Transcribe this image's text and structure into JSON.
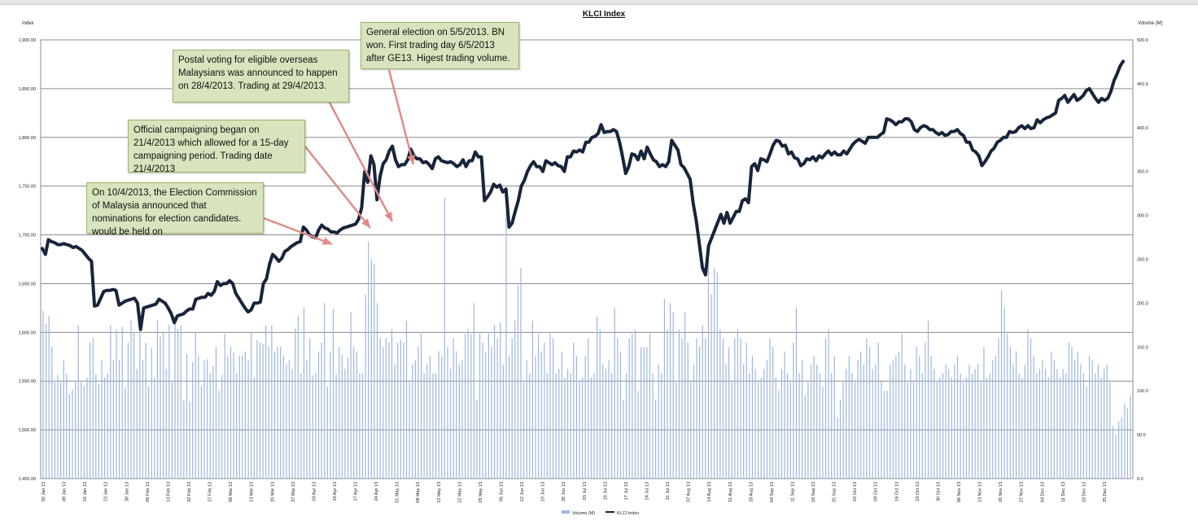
{
  "colors": {
    "line": "#17243a",
    "bars": "#9db7e0",
    "grid": "#8c8c8c",
    "annotation_fill": "#d7e4bd",
    "arrow": "#e08a8a"
  },
  "chart_data": {
    "type": "bar+line",
    "title": "KLCI Index",
    "ylabel": "Index",
    "y2label": "Volume (M)",
    "ylim": [
      1450,
      1900
    ],
    "y2lim": [
      0,
      500
    ],
    "grid": true,
    "legend_position": "bottom",
    "y_ticks": [
      "1,450.00",
      "1,500.00",
      "1,550.00",
      "1,600.00",
      "1,650.00",
      "1,700.00",
      "1,750.00",
      "1,800.00",
      "1,850.00",
      "1,900.00"
    ],
    "y2_ticks": [
      "0.0",
      "50.0",
      "100.0",
      "150.0",
      "200.0",
      "250.0",
      "300.0",
      "350.0",
      "400.0",
      "450.0",
      "500.0"
    ],
    "x_ticks": [
      "02 Jan 13",
      "09 Jan 13",
      "16 Jan 13",
      "23 Jan 13",
      "30 Jan 13",
      "06 Feb 13",
      "13 Feb 13",
      "20 Feb 13",
      "27 Feb 13",
      "06 Mar 13",
      "13 Mar 13",
      "20 Mar 13",
      "27 Mar 13",
      "03 Apr 13",
      "10 Apr 13",
      "17 Apr 13",
      "24 Apr 13",
      "01 May 13",
      "08 May 13",
      "15 May 13",
      "22 May 13",
      "29 May 13",
      "05 Jun 13",
      "12 Jun 13",
      "19 Jun 13",
      "26 Jun 13",
      "03 Jul 13",
      "10 Jul 13",
      "17 Jul 13",
      "24 Jul 13",
      "31 Jul 13",
      "07 Aug 13",
      "14 Aug 13",
      "21 Aug 13",
      "28 Aug 13",
      "04 Sep 13",
      "11 Sep 13",
      "18 Sep 13",
      "25 Sep 13",
      "02 Oct 13",
      "09 Oct 13",
      "16 Oct 13",
      "23 Oct 13",
      "30 Oct 13",
      "06 Nov 13",
      "13 Nov 13",
      "20 Nov 13",
      "27 Nov 13",
      "04 Dec 13",
      "11 Dec 13",
      "18 Dec 13",
      "25 Dec 13"
    ],
    "series": [
      {
        "name": "KLCI Index",
        "type": "line",
        "values": [
          1686,
          1680,
          1695,
          1693,
          1692,
          1690,
          1690,
          1691,
          1690,
          1689,
          1687,
          1688,
          1686,
          1684,
          1680,
          1676,
          1673,
          1627,
          1628,
          1635,
          1642,
          1643,
          1643,
          1644,
          1643,
          1628,
          1630,
          1632,
          1633,
          1634,
          1635,
          1630,
          1603,
          1625,
          1626,
          1627,
          1628,
          1629,
          1634,
          1632,
          1630,
          1625,
          1619,
          1610,
          1617,
          1618,
          1619,
          1622,
          1624,
          1624,
          1634,
          1635,
          1636,
          1636,
          1640,
          1638,
          1642,
          1652,
          1648,
          1650,
          1650,
          1653,
          1650,
          1640,
          1635,
          1630,
          1625,
          1621,
          1623,
          1630,
          1630,
          1631,
          1650,
          1655,
          1670,
          1680,
          1677,
          1673,
          1676,
          1683,
          1685,
          1688,
          1690,
          1692,
          1693,
          1708,
          1705,
          1700,
          1698,
          1697,
          1705,
          1710,
          1707,
          1706,
          1703,
          1703,
          1702,
          1705,
          1707,
          1708,
          1709,
          1710,
          1711,
          1716,
          1728,
          1765,
          1754,
          1781,
          1772,
          1736,
          1760,
          1773,
          1777,
          1786,
          1791,
          1777,
          1770,
          1772,
          1772,
          1777,
          1788,
          1781,
          1778,
          1778,
          1774,
          1775,
          1772,
          1768,
          1778,
          1780,
          1776,
          1775,
          1774,
          1775,
          1773,
          1770,
          1772,
          1777,
          1770,
          1776,
          1776,
          1785,
          1780,
          1780,
          1735,
          1739,
          1744,
          1752,
          1749,
          1751,
          1744,
          1747,
          1708,
          1712,
          1724,
          1735,
          1750,
          1756,
          1765,
          1771,
          1775,
          1770,
          1770,
          1765,
          1776,
          1774,
          1772,
          1774,
          1771,
          1770,
          1765,
          1780,
          1780,
          1786,
          1785,
          1787,
          1785,
          1795,
          1795,
          1800,
          1801,
          1804,
          1813,
          1805,
          1806,
          1806,
          1808,
          1806,
          1795,
          1780,
          1763,
          1770,
          1783,
          1782,
          1777,
          1786,
          1778,
          1790,
          1783,
          1777,
          1775,
          1770,
          1772,
          1770,
          1775,
          1797,
          1792,
          1787,
          1772,
          1769,
          1763,
          1757,
          1732,
          1714,
          1690,
          1666,
          1659,
          1689,
          1697,
          1705,
          1713,
          1721,
          1712,
          1723,
          1712,
          1718,
          1724,
          1724,
          1735,
          1737,
          1733,
          1770,
          1773,
          1766,
          1778,
          1777,
          1775,
          1783,
          1792,
          1797,
          1796,
          1791,
          1792,
          1783,
          1785,
          1779,
          1778,
          1771,
          1773,
          1778,
          1777,
          1780,
          1776,
          1781,
          1779,
          1783,
          1786,
          1782,
          1785,
          1782,
          1782,
          1786,
          1783,
          1788,
          1793,
          1796,
          1798,
          1796,
          1794,
          1800,
          1800,
          1800,
          1800,
          1803,
          1805,
          1819,
          1818,
          1816,
          1813,
          1816,
          1816,
          1819,
          1819,
          1816,
          1808,
          1806,
          1810,
          1812,
          1811,
          1808,
          1808,
          1805,
          1803,
          1805,
          1802,
          1803,
          1806,
          1806,
          1808,
          1804,
          1802,
          1795,
          1795,
          1787,
          1785,
          1781,
          1771,
          1775,
          1780,
          1786,
          1789,
          1795,
          1797,
          1800,
          1800,
          1806,
          1805,
          1806,
          1810,
          1812,
          1809,
          1812,
          1809,
          1810,
          1818,
          1815,
          1818,
          1820,
          1821,
          1823,
          1825,
          1838,
          1840,
          1843,
          1836,
          1840,
          1844,
          1838,
          1840,
          1843,
          1848,
          1850,
          1845,
          1840,
          1836,
          1840,
          1838,
          1840,
          1847,
          1858,
          1865,
          1873,
          1878
        ]
      },
      {
        "name": "Volume (M)",
        "type": "bar",
        "axis": "y2",
        "values": [
          191,
          176,
          185,
          150,
          110,
          118,
          110,
          135,
          120,
          96,
          102,
          110,
          175,
          110,
          106,
          115,
          155,
          160,
          119,
          108,
          135,
          115,
          120,
          175,
          135,
          170,
          135,
          173,
          104,
          155,
          180,
          167,
          125,
          185,
          135,
          155,
          105,
          149,
          115,
          180,
          162,
          167,
          125,
          175,
          110,
          185,
          170,
          175,
          90,
          142,
          88,
          133,
          167,
          140,
          105,
          135,
          136,
          120,
          128,
          150,
          100,
          118,
          165,
          140,
          150,
          144,
          120,
          140,
          140,
          145,
          135,
          167,
          115,
          158,
          155,
          153,
          175,
          150,
          175,
          145,
          150,
          150,
          140,
          130,
          135,
          125,
          171,
          186,
          120,
          195,
          135,
          160,
          118,
          120,
          145,
          155,
          200,
          105,
          145,
          193,
          119,
          150,
          141,
          125,
          138,
          190,
          150,
          145,
          120,
          120,
          210,
          270,
          250,
          245,
          200,
          160,
          150,
          160,
          155,
          170,
          130,
          155,
          158,
          155,
          180,
          110,
          130,
          135,
          150,
          165,
          120,
          130,
          140,
          120,
          120,
          145,
          140,
          320,
          150,
          125,
          160,
          145,
          130,
          135,
          165,
          170,
          165,
          200,
          90,
          165,
          155,
          145,
          165,
          150,
          175,
          160,
          178,
          130,
          305,
          140,
          160,
          180,
          220,
          240,
          110,
          135,
          120,
          180,
          140,
          165,
          145,
          155,
          120,
          165,
          160,
          120,
          125,
          145,
          115,
          125,
          120,
          155,
          140,
          110,
          115,
          140,
          160,
          115,
          120,
          185,
          170,
          130,
          125,
          135,
          120,
          195,
          160,
          145,
          90,
          120,
          160,
          165,
          170,
          100,
          150,
          150,
          150,
          165,
          120,
          90,
          130,
          120,
          205,
          170,
          200,
          190,
          110,
          170,
          160,
          190,
          155,
          110,
          130,
          160,
          150,
          175,
          160,
          260,
          210,
          240,
          235,
          170,
          160,
          130,
          150,
          110,
          160,
          170,
          160,
          130,
          155,
          120,
          140,
          125,
          110,
          115,
          125,
          135,
          160,
          150,
          115,
          100,
          125,
          145,
          120,
          110,
          155,
          195,
          120,
          135,
          95,
          110,
          130,
          140,
          130,
          120,
          105,
          160,
          170,
          120,
          140,
          70,
          90,
          110,
          125,
          140,
          120,
          110,
          135,
          145,
          130,
          160,
          150,
          125,
          130,
          155,
          110,
          100,
          100,
          130,
          135,
          140,
          145,
          165,
          130,
          110,
          125,
          110,
          150,
          140,
          120,
          155,
          180,
          140,
          125,
          110,
          115,
          120,
          130,
          125,
          115,
          130,
          140,
          120,
          110,
          115,
          130,
          120,
          125,
          130,
          110,
          150,
          115,
          120,
          135,
          140,
          160,
          215,
          195,
          165,
          150,
          130,
          145,
          120,
          115,
          130,
          170,
          160,
          140,
          120,
          125,
          135,
          125,
          115,
          145,
          135,
          125,
          115,
          125,
          120,
          155,
          150,
          135,
          145,
          130,
          120,
          105,
          140,
          135,
          120,
          130,
          115,
          125,
          130,
          110,
          60,
          50,
          65,
          70,
          85,
          80,
          95
        ]
      }
    ],
    "annotations": [
      {
        "text": "On 10/4/2013, the Election Commission of Malaysia announced that nominations for election candidates. would be held on"
      },
      {
        "text": "Official campaigning began on 21/4/2013 which allowed for a 15-day campaigning period. Trading date 21/4/2013"
      },
      {
        "text": "Postal voting for eligible overseas Malaysians was announced to happen on 28/4/2013. Trading at 29/4/2013."
      },
      {
        "text": "General election on 5/5/2013. BN won. First trading day 6/5/2013 after GE13. Higest trading volume."
      }
    ]
  }
}
